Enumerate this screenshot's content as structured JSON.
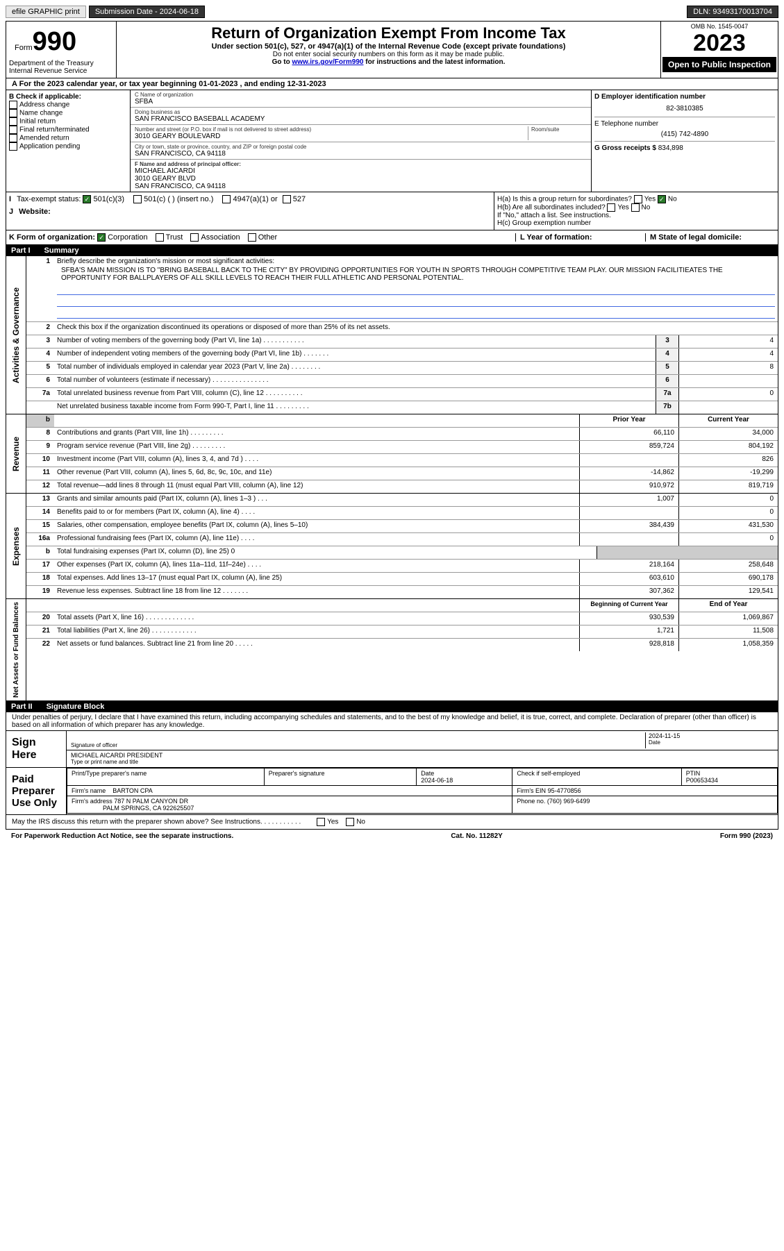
{
  "topbar": {
    "efile": "efile GRAPHIC print",
    "subdate_label": "Submission Date - ",
    "subdate": "2024-06-18",
    "dln_label": "DLN: ",
    "dln": "93493170013704"
  },
  "header": {
    "form_prefix": "Form",
    "form_num": "990",
    "title": "Return of Organization Exempt From Income Tax",
    "subtitle": "Under section 501(c), 527, or 4947(a)(1) of the Internal Revenue Code (except private foundations)",
    "warn": "Do not enter social security numbers on this form as it may be made public.",
    "goto": "Go to ",
    "goto_link": "www.irs.gov/Form990",
    "goto_tail": " for instructions and the latest information.",
    "dept": "Department of the Treasury",
    "irs": "Internal Revenue Service",
    "omb": "OMB No. 1545-0047",
    "year": "2023",
    "open": "Open to Public Inspection"
  },
  "rowA": {
    "text": "A For the 2023 calendar year, or tax year beginning ",
    "begin": "01-01-2023",
    "mid": " , and ending ",
    "end": "12-31-2023"
  },
  "colB": {
    "head": "B Check if applicable:",
    "opts": [
      "Address change",
      "Name change",
      "Initial return",
      "Final return/terminated",
      "Amended return",
      "Application pending"
    ]
  },
  "colC": {
    "name_label": "C Name of organization",
    "name": "SFBA",
    "dba_label": "Doing business as",
    "dba": "SAN FRANCISCO BASEBALL ACADEMY",
    "street_label": "Number and street (or P.O. box if mail is not delivered to street address)",
    "room_label": "Room/suite",
    "street": "3010 GEARY BOULEVARD",
    "city_label": "City or town, state or province, country, and ZIP or foreign postal code",
    "city": "SAN FRANCISCO, CA  94118",
    "officer_label": "F Name and address of principal officer:",
    "officer_name": "MICHAEL AICARDI",
    "officer_street": "3010 GEARY BLVD",
    "officer_city": "SAN FRANCISCO, CA  94118"
  },
  "colD": {
    "ein_label": "D Employer identification number",
    "ein": "82-3810385",
    "tel_label": "E Telephone number",
    "tel": "(415) 742-4890",
    "gross_label": "G Gross receipts $ ",
    "gross": "834,898"
  },
  "H": {
    "ha": "H(a)  Is this a group return for subordinates?",
    "ha_no": "No",
    "ha_yes": "Yes",
    "hb": "H(b)  Are all subordinates included?",
    "hb_yes": "Yes",
    "hb_no": "No",
    "hb_note": "If \"No,\" attach a list. See instructions.",
    "hc": "H(c)  Group exemption number"
  },
  "I": {
    "label": "Tax-exempt status:",
    "o1": "501(c)(3)",
    "o2": "501(c) (   ) (insert no.)",
    "o3": "4947(a)(1) or",
    "o4": "527"
  },
  "J": {
    "label": "Website:"
  },
  "K": {
    "label": "K Form of organization:",
    "o1": "Corporation",
    "o2": "Trust",
    "o3": "Association",
    "o4": "Other"
  },
  "L": {
    "label": "L Year of formation:"
  },
  "M": {
    "label": "M State of legal domicile:"
  },
  "part1": {
    "label": "Part I",
    "title": "Summary"
  },
  "summary": {
    "l1": "Briefly describe the organization's mission or most significant activities:",
    "mission": "SFBA'S MAIN MISSION IS TO \"BRING BASEBALL BACK TO THE CITY\" BY PROVIDING OPPORTUNITIES FOR YOUTH IN SPORTS THROUGH COMPETITIVE TEAM PLAY. OUR MISSION FACILITIEATES THE OPPORTUNITY FOR BALLPLAYERS OF ALL SKILL LEVELS TO REACH THEIR FULL ATHLETIC AND PERSONAL POTENTIAL.",
    "l2": "Check this box      if the organization discontinued its operations or disposed of more than 25% of its net assets.",
    "l3": "Number of voting members of the governing body (Part VI, line 1a)   .    .    .    .    .    .    .    .    .    .    .",
    "v3": "4",
    "l4": "Number of independent voting members of the governing body (Part VI, line 1b)   .    .    .    .    .    .    .",
    "v4": "4",
    "l5": "Total number of individuals employed in calendar year 2023 (Part V, line 2a)   .    .    .    .    .    .    .    .",
    "v5": "8",
    "l6": "Total number of volunteers (estimate if necessary)   .    .    .    .    .    .    .    .    .    .    .    .    .    .    .",
    "v6": "",
    "l7a": "Total unrelated business revenue from Part VIII, column (C), line 12   .    .    .    .    .    .    .    .    .    .",
    "v7a": "0",
    "l7b": "Net unrelated business taxable income from Form 990-T, Part I, line 11   .    .    .    .    .    .    .    .    .",
    "v7b": ""
  },
  "revenue": {
    "prior_hdr": "Prior Year",
    "curr_hdr": "Current Year",
    "rows": [
      {
        "n": "8",
        "t": "Contributions and grants (Part VIII, line 1h)    .    .    .    .    .    .    .    .    .",
        "p": "66,110",
        "c": "34,000"
      },
      {
        "n": "9",
        "t": "Program service revenue (Part VIII, line 2g)    .    .    .    .    .    .    .    .    .",
        "p": "859,724",
        "c": "804,192"
      },
      {
        "n": "10",
        "t": "Investment income (Part VIII, column (A), lines 3, 4, and 7d )    .    .    .    .",
        "p": "",
        "c": "826"
      },
      {
        "n": "11",
        "t": "Other revenue (Part VIII, column (A), lines 5, 6d, 8c, 9c, 10c, and 11e)",
        "p": "-14,862",
        "c": "-19,299"
      },
      {
        "n": "12",
        "t": "Total revenue—add lines 8 through 11 (must equal Part VIII, column (A), line 12)",
        "p": "910,972",
        "c": "819,719"
      }
    ]
  },
  "expenses": {
    "rows": [
      {
        "n": "13",
        "t": "Grants and similar amounts paid (Part IX, column (A), lines 1–3 )    .    .    .",
        "p": "1,007",
        "c": "0"
      },
      {
        "n": "14",
        "t": "Benefits paid to or for members (Part IX, column (A), line 4)    .    .    .    .",
        "p": "",
        "c": "0"
      },
      {
        "n": "15",
        "t": "Salaries, other compensation, employee benefits (Part IX, column (A), lines 5–10)",
        "p": "384,439",
        "c": "431,530"
      },
      {
        "n": "16a",
        "t": "Professional fundraising fees (Part IX, column (A), line 11e)    .    .    .    .",
        "p": "",
        "c": "0"
      },
      {
        "n": "b",
        "t": "Total fundraising expenses (Part IX, column (D), line 25) 0",
        "p": "",
        "c": "",
        "noval": true
      },
      {
        "n": "17",
        "t": "Other expenses (Part IX, column (A), lines 11a–11d, 11f–24e)    .    .    .    .",
        "p": "218,164",
        "c": "258,648"
      },
      {
        "n": "18",
        "t": "Total expenses. Add lines 13–17 (must equal Part IX, column (A), line 25)",
        "p": "603,610",
        "c": "690,178"
      },
      {
        "n": "19",
        "t": "Revenue less expenses. Subtract line 18 from line 12    .    .    .    .    .    .    .",
        "p": "307,362",
        "c": "129,541"
      }
    ]
  },
  "netassets": {
    "beg_hdr": "Beginning of Current Year",
    "end_hdr": "End of Year",
    "rows": [
      {
        "n": "20",
        "t": "Total assets (Part X, line 16)    .    .    .    .    .    .    .    .    .    .    .    .    .",
        "p": "930,539",
        "c": "1,069,867"
      },
      {
        "n": "21",
        "t": "Total liabilities (Part X, line 26)    .    .    .    .    .    .    .    .    .    .    .    .",
        "p": "1,721",
        "c": "11,508"
      },
      {
        "n": "22",
        "t": "Net assets or fund balances. Subtract line 21 from line 20    .    .    .    .    .",
        "p": "928,818",
        "c": "1,058,359"
      }
    ]
  },
  "part2": {
    "label": "Part II",
    "title": "Signature Block"
  },
  "sig": {
    "perjury": "Under penalties of perjury, I declare that I have examined this return, including accompanying schedules and statements, and to the best of my knowledge and belief, it is true, correct, and complete. Declaration of preparer (other than officer) is based on all information of which preparer has any knowledge.",
    "sign_here": "Sign Here",
    "sig_officer": "Signature of officer",
    "sig_name": "MICHAEL AICARDI PRESIDENT",
    "sig_type": "Type or print name and title",
    "date_label": "Date",
    "date": "2024-11-15",
    "paid": "Paid Preparer Use Only",
    "prep_name_hdr": "Print/Type preparer's name",
    "prep_sig_hdr": "Preparer's signature",
    "prep_date_hdr": "Date",
    "prep_date": "2024-06-18",
    "check_if": "Check       if self-employed",
    "ptin_hdr": "PTIN",
    "ptin": "P00653434",
    "firm_name_label": "Firm's name",
    "firm_name": "BARTON CPA",
    "firm_ein_label": "Firm's EIN",
    "firm_ein": "95-4770856",
    "firm_addr_label": "Firm's address",
    "firm_addr": "787 N PALM CANYON DR",
    "firm_city": "PALM SPRINGS, CA  922625507",
    "phone_label": "Phone no.",
    "phone": "(760) 969-6499",
    "discuss": "May the IRS discuss this return with the preparer shown above? See Instructions.    .    .    .    .    .    .    .    .    .    .",
    "d_yes": "Yes",
    "d_no": "No"
  },
  "footer": {
    "left": "For Paperwork Reduction Act Notice, see the separate instructions.",
    "mid": "Cat. No. 11282Y",
    "right": "Form 990 (2023)"
  },
  "sides": {
    "gov": "Activities & Governance",
    "rev": "Revenue",
    "exp": "Expenses",
    "net": "Net Assets or Fund Balances"
  }
}
